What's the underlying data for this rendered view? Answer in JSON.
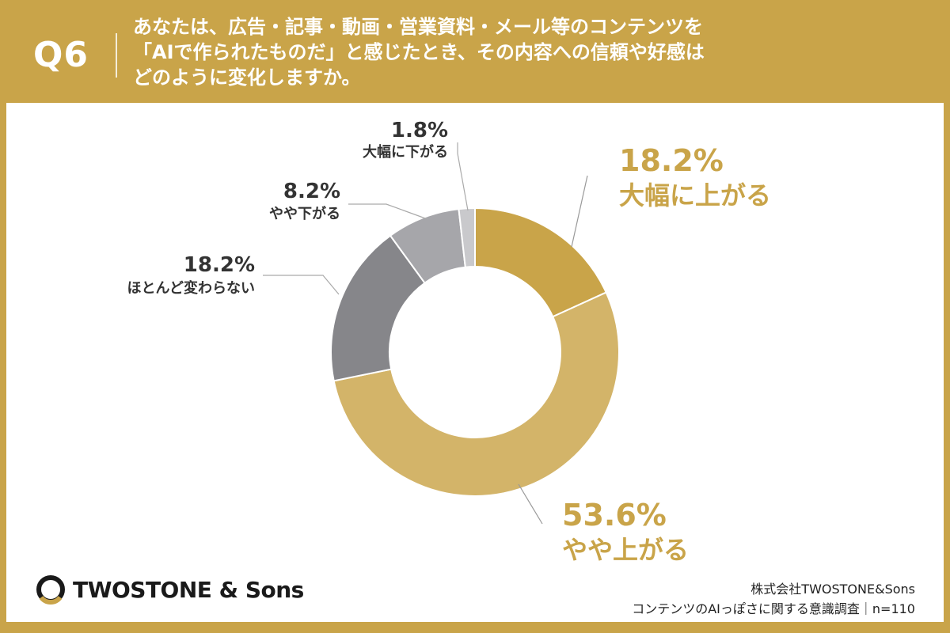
{
  "header": {
    "question_no": "Q6",
    "lines": [
      "あなたは、広告・記事・動画・営業資料・メール等のコンテンツを",
      "「AIで作られたものだ」と感じたとき、その内容への信頼や好感は",
      "どのように変化しますか。"
    ]
  },
  "chart_data": {
    "type": "pie",
    "donut": true,
    "slices": [
      {
        "label": "大幅に上がる",
        "value": 18.2,
        "pct_text": "18.2%",
        "color": "#c9a449"
      },
      {
        "label": "やや上がる",
        "value": 53.6,
        "pct_text": "53.6%",
        "color": "#d3b469"
      },
      {
        "label": "ほとんど変わらない",
        "value": 18.2,
        "pct_text": "18.2%",
        "color": "#86868a"
      },
      {
        "label": "やや下がる",
        "value": 8.2,
        "pct_text": "8.2%",
        "color": "#a6a6aa"
      },
      {
        "label": "大幅に下がる",
        "value": 1.8,
        "pct_text": "1.8%",
        "color": "#c9c9cc"
      }
    ],
    "label_colors": {
      "positive": "#c9a449",
      "neutral": "#333333"
    }
  },
  "branding": {
    "logo_text": "TWOSTONE & Sons",
    "logo_icon": "ring-logo-icon"
  },
  "footer": {
    "company": "株式会社TWOSTONE&Sons",
    "survey": "コンテンツのAIっぽさに関する意識調査｜n=110"
  }
}
